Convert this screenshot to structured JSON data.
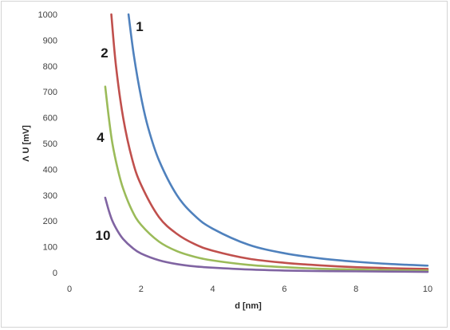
{
  "chart_data": {
    "type": "line",
    "title": "",
    "xlabel": "d [nm]",
    "ylabel": "Λ U [mV]",
    "xlim": [
      0,
      10
    ],
    "ylim": [
      0,
      1000
    ],
    "xticks": [
      0,
      2,
      4,
      6,
      8,
      10
    ],
    "yticks": [
      0,
      100,
      200,
      300,
      400,
      500,
      600,
      700,
      800,
      900,
      1000
    ],
    "grid": false,
    "legend": "none",
    "series": [
      {
        "name": "1",
        "color": "#4F81BD",
        "x": [
          1.65,
          1.8,
          2,
          2.2,
          2.5,
          3,
          3.5,
          4,
          5,
          6,
          7,
          8,
          9,
          10
        ],
        "y": [
          1000,
          840,
          680,
          560,
          435,
          300,
          220,
          170,
          108,
          75,
          55,
          42,
          33,
          27
        ]
      },
      {
        "name": "2",
        "color": "#C0504D",
        "x": [
          1.17,
          1.3,
          1.5,
          1.75,
          2,
          2.5,
          3,
          3.5,
          4,
          5,
          6,
          7,
          8,
          9,
          10
        ],
        "y": [
          1000,
          800,
          600,
          440,
          340,
          215,
          150,
          110,
          85,
          54,
          38,
          28,
          21,
          17,
          14
        ]
      },
      {
        "name": "4",
        "color": "#9BBB59",
        "x": [
          1,
          1.1,
          1.2,
          1.35,
          1.5,
          1.75,
          2,
          2.5,
          3,
          3.5,
          4,
          5,
          6,
          7,
          8,
          9,
          10
        ],
        "y": [
          720,
          600,
          500,
          400,
          325,
          240,
          185,
          120,
          83,
          61,
          47,
          30,
          21,
          15,
          12,
          9,
          8
        ]
      },
      {
        "name": "10",
        "color": "#8064A2",
        "x": [
          1,
          1.1,
          1.2,
          1.35,
          1.5,
          1.75,
          2,
          2.5,
          3,
          3.5,
          4,
          5,
          6,
          7,
          8,
          10
        ],
        "y": [
          290,
          240,
          200,
          160,
          130,
          97,
          74,
          48,
          33,
          24,
          19,
          12,
          8,
          6,
          5,
          3
        ]
      }
    ]
  }
}
